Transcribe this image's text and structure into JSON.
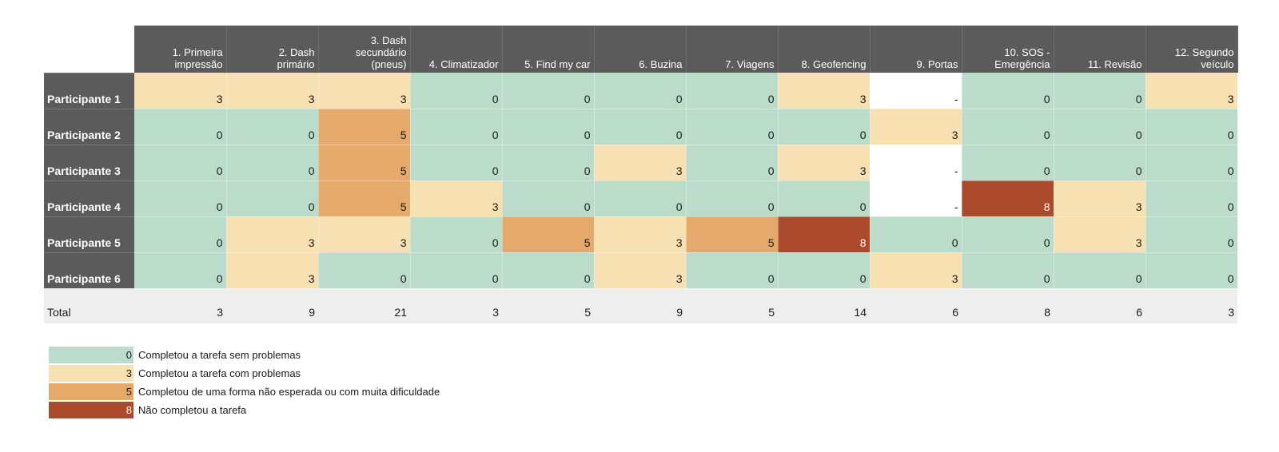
{
  "chart_data": {
    "type": "heatmap",
    "columns": [
      "1. Primeira\nimpressão",
      "2. Dash\nprimário",
      "3. Dash\nsecundário\n(pneus)",
      "4. Climatizador",
      "5. Find my car",
      "6. Buzina",
      "7. Viagens",
      "8. Geofencing",
      "9. Portas",
      "10. SOS -\nEmergência",
      "11. Revisão",
      "12. Segundo\nveículo"
    ],
    "rows": [
      {
        "name": "Participante 1",
        "values": [
          3,
          3,
          3,
          0,
          0,
          0,
          0,
          3,
          "-",
          0,
          0,
          3
        ]
      },
      {
        "name": "Participante 2",
        "values": [
          0,
          0,
          5,
          0,
          0,
          0,
          0,
          0,
          3,
          0,
          0,
          0
        ]
      },
      {
        "name": "Participante 3",
        "values": [
          0,
          0,
          5,
          0,
          0,
          3,
          0,
          3,
          "-",
          0,
          0,
          0
        ]
      },
      {
        "name": "Participante 4",
        "values": [
          0,
          0,
          5,
          3,
          0,
          0,
          0,
          0,
          "-",
          8,
          3,
          0
        ]
      },
      {
        "name": "Participante 5",
        "values": [
          0,
          3,
          3,
          0,
          5,
          3,
          5,
          8,
          0,
          0,
          3,
          0
        ]
      },
      {
        "name": "Participante 6",
        "values": [
          0,
          3,
          0,
          0,
          0,
          3,
          0,
          0,
          3,
          0,
          0,
          0
        ]
      }
    ],
    "totals": {
      "label": "Total",
      "values": [
        3,
        9,
        21,
        3,
        5,
        9,
        5,
        14,
        6,
        8,
        6,
        3
      ]
    },
    "legend": [
      {
        "value": 0,
        "label": "Completou a tarefa sem problemas",
        "color": "#bcdccb"
      },
      {
        "value": 3,
        "label": "Completou a tarefa com problemas",
        "color": "#f7e0b1"
      },
      {
        "value": 5,
        "label": "Completou de uma forma não esperada ou com muita dificuldade",
        "color": "#e5a96c"
      },
      {
        "value": 8,
        "label": "Não completou a tarefa",
        "color": "#ab4a2d"
      }
    ],
    "legend_placement": "bottom-left",
    "missing_color": "#ffffff"
  }
}
